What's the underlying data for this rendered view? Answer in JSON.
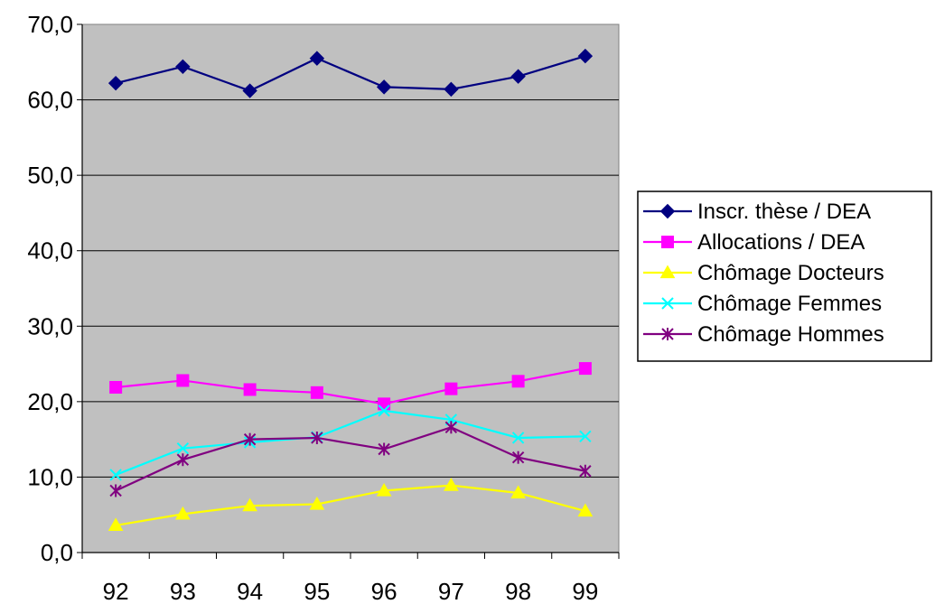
{
  "chart_data": {
    "type": "line",
    "title": "",
    "xlabel": "",
    "ylabel": "",
    "categories": [
      "92",
      "93",
      "94",
      "95",
      "96",
      "97",
      "98",
      "99"
    ],
    "ylim": [
      0,
      70
    ],
    "yticks": [
      0,
      10,
      20,
      30,
      40,
      50,
      60,
      70
    ],
    "ytick_labels": [
      "0,0",
      "10,0",
      "20,0",
      "30,0",
      "40,0",
      "50,0",
      "60,0",
      "70,0"
    ],
    "grid": "horizontal",
    "plot_background": "#C0C0C0",
    "legend_position": "right",
    "series": [
      {
        "name": "Inscr. thèse / DEA",
        "color": "#000080",
        "marker": "diamond",
        "values": [
          62.2,
          64.4,
          61.2,
          65.5,
          61.7,
          61.4,
          63.1,
          65.8
        ]
      },
      {
        "name": "Allocations / DEA",
        "color": "#FF00FF",
        "marker": "square",
        "values": [
          21.9,
          22.8,
          21.6,
          21.2,
          19.7,
          21.7,
          22.7,
          24.4
        ]
      },
      {
        "name": "Chômage Docteurs",
        "color": "#FFFF00",
        "marker": "triangle",
        "values": [
          3.6,
          5.1,
          6.2,
          6.4,
          8.2,
          8.9,
          7.9,
          5.5
        ]
      },
      {
        "name": "Chômage Femmes",
        "color": "#00FFFF",
        "marker": "x",
        "values": [
          10.3,
          13.8,
          14.6,
          15.3,
          18.8,
          17.6,
          15.2,
          15.4
        ]
      },
      {
        "name": "Chômage Hommes",
        "color": "#800080",
        "marker": "asterisk",
        "values": [
          8.2,
          12.3,
          15.0,
          15.2,
          13.7,
          16.6,
          12.6,
          10.8
        ]
      }
    ]
  }
}
